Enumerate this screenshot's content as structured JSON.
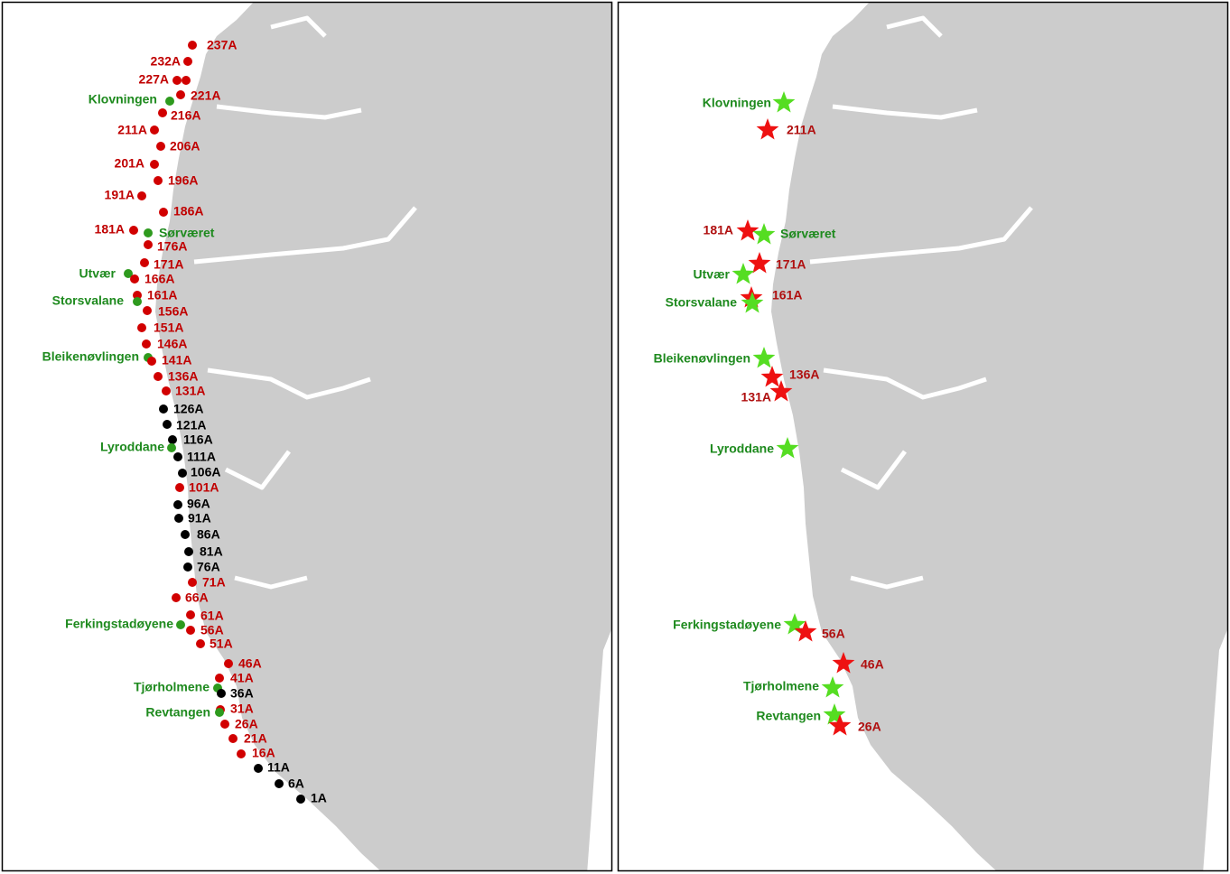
{
  "panels": [
    {
      "marker": "dot",
      "markers": [
        {
          "label": "237A",
          "marker_color": "#d10000",
          "label_color": "#c00000"
        },
        {
          "label": "232A",
          "marker_color": "#d10000",
          "label_color": "#c00000"
        },
        {
          "label": "227A",
          "marker_color": "#d10000",
          "label_color": "#c00000"
        },
        {
          "label": "221A",
          "marker_color": "#d10000",
          "label_color": "#c00000"
        },
        {
          "label": "Klovningen",
          "marker_color": "#2e9a1e",
          "label_color": "#1e8a1e"
        },
        {
          "label": "216A",
          "marker_color": "#d10000",
          "label_color": "#c00000"
        },
        {
          "label": "211A",
          "marker_color": "#d10000",
          "label_color": "#c00000"
        },
        {
          "label": "206A",
          "marker_color": "#d10000",
          "label_color": "#c00000"
        },
        {
          "label": "201A",
          "marker_color": "#d10000",
          "label_color": "#c00000"
        },
        {
          "label": "196A",
          "marker_color": "#d10000",
          "label_color": "#c00000"
        },
        {
          "label": "191A",
          "marker_color": "#d10000",
          "label_color": "#c00000"
        },
        {
          "label": "186A",
          "marker_color": "#d10000",
          "label_color": "#c00000"
        },
        {
          "label": "181A",
          "marker_color": "#d10000",
          "label_color": "#c00000"
        },
        {
          "label": "Sørværet",
          "marker_color": "#2e9a1e",
          "label_color": "#1e8a1e"
        },
        {
          "label": "176A",
          "marker_color": "#d10000",
          "label_color": "#c00000"
        },
        {
          "label": "171A",
          "marker_color": "#d10000",
          "label_color": "#c00000"
        },
        {
          "label": "Utvær",
          "marker_color": "#2e9a1e",
          "label_color": "#1e8a1e"
        },
        {
          "label": "166A",
          "marker_color": "#d10000",
          "label_color": "#c00000"
        },
        {
          "label": "161A",
          "marker_color": "#d10000",
          "label_color": "#c00000"
        },
        {
          "label": "Storsvalane",
          "marker_color": "#2e9a1e",
          "label_color": "#1e8a1e"
        },
        {
          "label": "156A",
          "marker_color": "#d10000",
          "label_color": "#c00000"
        },
        {
          "label": "151A",
          "marker_color": "#d10000",
          "label_color": "#c00000"
        },
        {
          "label": "146A",
          "marker_color": "#d10000",
          "label_color": "#c00000"
        },
        {
          "label": "Bleikenøvlingen",
          "marker_color": "#2e9a1e",
          "label_color": "#1e8a1e"
        },
        {
          "label": "141A",
          "marker_color": "#d10000",
          "label_color": "#c00000"
        },
        {
          "label": "136A",
          "marker_color": "#d10000",
          "label_color": "#c00000"
        },
        {
          "label": "131A",
          "marker_color": "#d10000",
          "label_color": "#c00000"
        },
        {
          "label": "126A",
          "marker_color": "#000000",
          "label_color": "#000000"
        },
        {
          "label": "121A",
          "marker_color": "#000000",
          "label_color": "#000000"
        },
        {
          "label": "116A",
          "marker_color": "#000000",
          "label_color": "#000000"
        },
        {
          "label": "Lyroddane",
          "marker_color": "#2e9a1e",
          "label_color": "#1e8a1e"
        },
        {
          "label": "111A",
          "marker_color": "#000000",
          "label_color": "#000000"
        },
        {
          "label": "106A",
          "marker_color": "#000000",
          "label_color": "#000000"
        },
        {
          "label": "101A",
          "marker_color": "#d10000",
          "label_color": "#c00000"
        },
        {
          "label": "96A",
          "marker_color": "#000000",
          "label_color": "#000000"
        },
        {
          "label": "91A",
          "marker_color": "#000000",
          "label_color": "#000000"
        },
        {
          "label": "86A",
          "marker_color": "#000000",
          "label_color": "#000000"
        },
        {
          "label": "81A",
          "marker_color": "#000000",
          "label_color": "#000000"
        },
        {
          "label": "76A",
          "marker_color": "#000000",
          "label_color": "#000000"
        },
        {
          "label": "71A",
          "marker_color": "#d10000",
          "label_color": "#c00000"
        },
        {
          "label": "66A",
          "marker_color": "#d10000",
          "label_color": "#c00000"
        },
        {
          "label": "61A",
          "marker_color": "#d10000",
          "label_color": "#c00000"
        },
        {
          "label": "Ferkingstadøyene",
          "marker_color": "#2e9a1e",
          "label_color": "#1e8a1e"
        },
        {
          "label": "56A",
          "marker_color": "#d10000",
          "label_color": "#c00000"
        },
        {
          "label": "51A",
          "marker_color": "#d10000",
          "label_color": "#c00000"
        },
        {
          "label": "46A",
          "marker_color": "#d10000",
          "label_color": "#c00000"
        },
        {
          "label": "41A",
          "marker_color": "#d10000",
          "label_color": "#c00000"
        },
        {
          "label": "Tjørholmene",
          "marker_color": "#2e9a1e",
          "label_color": "#1e8a1e"
        },
        {
          "label": "36A",
          "marker_color": "#000000",
          "label_color": "#000000"
        },
        {
          "label": "31A",
          "marker_color": "#d10000",
          "label_color": "#c00000"
        },
        {
          "label": "Revtangen",
          "marker_color": "#2e9a1e",
          "label_color": "#1e8a1e"
        },
        {
          "label": "26A",
          "marker_color": "#d10000",
          "label_color": "#c00000"
        },
        {
          "label": "21A",
          "marker_color": "#d10000",
          "label_color": "#c00000"
        },
        {
          "label": "16A",
          "marker_color": "#d10000",
          "label_color": "#c00000"
        },
        {
          "label": "11A",
          "marker_color": "#000000",
          "label_color": "#000000"
        },
        {
          "label": "6A",
          "marker_color": "#000000",
          "label_color": "#000000"
        },
        {
          "label": "1A",
          "marker_color": "#000000",
          "label_color": "#000000"
        }
      ]
    },
    {
      "marker": "star",
      "markers": [
        {
          "label": "Klovningen",
          "marker_color": "#55dd22",
          "label_color": "#1e8a1e"
        },
        {
          "label": "211A",
          "marker_color": "#ee1111",
          "label_color": "#b01010"
        },
        {
          "label": "181A",
          "marker_color": "#ee1111",
          "label_color": "#b01010"
        },
        {
          "label": "Sørværet",
          "marker_color": "#55dd22",
          "label_color": "#1e8a1e"
        },
        {
          "label": "171A",
          "marker_color": "#ee1111",
          "label_color": "#b01010"
        },
        {
          "label": "Utvær",
          "marker_color": "#55dd22",
          "label_color": "#1e8a1e"
        },
        {
          "label": "161A",
          "marker_color": "#ee1111",
          "label_color": "#b01010"
        },
        {
          "label": "Storsvalane",
          "marker_color": "#55dd22",
          "label_color": "#1e8a1e"
        },
        {
          "label": "Bleikenøvlingen",
          "marker_color": "#55dd22",
          "label_color": "#1e8a1e"
        },
        {
          "label": "136A",
          "marker_color": "#ee1111",
          "label_color": "#b01010"
        },
        {
          "label": "131A",
          "marker_color": "#ee1111",
          "label_color": "#b01010"
        },
        {
          "label": "Lyroddane",
          "marker_color": "#55dd22",
          "label_color": "#1e8a1e"
        },
        {
          "label": "Ferkingstadøyene",
          "marker_color": "#55dd22",
          "label_color": "#1e8a1e"
        },
        {
          "label": "56A",
          "marker_color": "#ee1111",
          "label_color": "#b01010"
        },
        {
          "label": "46A",
          "marker_color": "#ee1111",
          "label_color": "#b01010"
        },
        {
          "label": "Tjørholmene",
          "marker_color": "#55dd22",
          "label_color": "#1e8a1e"
        },
        {
          "label": "Revtangen",
          "marker_color": "#55dd22",
          "label_color": "#1e8a1e"
        },
        {
          "label": "26A",
          "marker_color": "#ee1111",
          "label_color": "#b01010"
        }
      ]
    }
  ]
}
